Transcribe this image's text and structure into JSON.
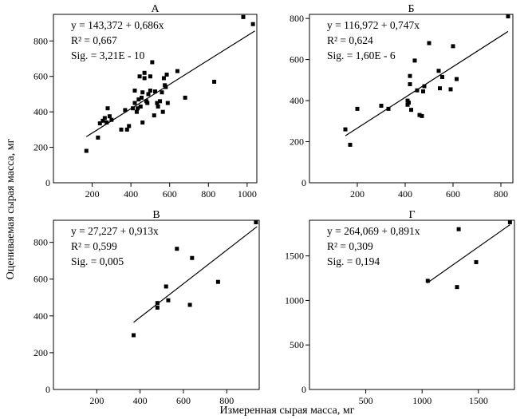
{
  "figure": {
    "xlabel": "Измеренная сырая масса, мг",
    "ylabel": "Оцениваемая сырая масса, мг"
  },
  "chart_data": [
    {
      "type": "scatter",
      "panel": "A",
      "title": "А",
      "equation": "y = 143,372 + 0,686x",
      "r2_label": "R² = 0,667",
      "sig_label": "Sig. = 3,21E - 10",
      "xlim": [
        0,
        1050
      ],
      "ylim": [
        0,
        950
      ],
      "xticks": [
        200,
        400,
        600,
        800,
        1000
      ],
      "yticks": [
        200,
        400,
        600,
        800
      ],
      "fit": {
        "intercept": 143.372,
        "slope": 0.686,
        "x_range": [
          170,
          1040
        ]
      },
      "points": [
        [
          170,
          180
        ],
        [
          230,
          255
        ],
        [
          240,
          335
        ],
        [
          255,
          350
        ],
        [
          265,
          365
        ],
        [
          275,
          340
        ],
        [
          280,
          420
        ],
        [
          290,
          375
        ],
        [
          300,
          355
        ],
        [
          350,
          300
        ],
        [
          370,
          410
        ],
        [
          380,
          300
        ],
        [
          390,
          320
        ],
        [
          410,
          420
        ],
        [
          420,
          450
        ],
        [
          420,
          520
        ],
        [
          430,
          400
        ],
        [
          435,
          420
        ],
        [
          440,
          470
        ],
        [
          445,
          600
        ],
        [
          450,
          430
        ],
        [
          455,
          480
        ],
        [
          460,
          510
        ],
        [
          460,
          340
        ],
        [
          470,
          620
        ],
        [
          470,
          590
        ],
        [
          480,
          460
        ],
        [
          485,
          450
        ],
        [
          490,
          500
        ],
        [
          500,
          600
        ],
        [
          500,
          520
        ],
        [
          510,
          680
        ],
        [
          520,
          380
        ],
        [
          525,
          515
        ],
        [
          535,
          450
        ],
        [
          540,
          430
        ],
        [
          550,
          460
        ],
        [
          560,
          510
        ],
        [
          565,
          400
        ],
        [
          570,
          590
        ],
        [
          575,
          550
        ],
        [
          580,
          540
        ],
        [
          585,
          610
        ],
        [
          590,
          450
        ],
        [
          640,
          630
        ],
        [
          680,
          480
        ],
        [
          830,
          570
        ],
        [
          980,
          935
        ],
        [
          1030,
          895
        ]
      ]
    },
    {
      "type": "scatter",
      "panel": "B",
      "title": "Б",
      "equation": "y = 116,972 + 0,747x",
      "r2_label": "R² = 0,624",
      "sig_label": "Sig. = 1,60E - 6",
      "xlim": [
        0,
        850
      ],
      "ylim": [
        0,
        820
      ],
      "xticks": [
        200,
        400,
        600,
        800
      ],
      "yticks": [
        200,
        400,
        600,
        800
      ],
      "fit": {
        "intercept": 116.972,
        "slope": 0.747,
        "x_range": [
          150,
          830
        ]
      },
      "points": [
        [
          150,
          260
        ],
        [
          170,
          185
        ],
        [
          200,
          360
        ],
        [
          300,
          375
        ],
        [
          330,
          360
        ],
        [
          410,
          380
        ],
        [
          410,
          400
        ],
        [
          415,
          390
        ],
        [
          420,
          480
        ],
        [
          420,
          520
        ],
        [
          425,
          355
        ],
        [
          440,
          595
        ],
        [
          450,
          450
        ],
        [
          460,
          330
        ],
        [
          470,
          325
        ],
        [
          475,
          445
        ],
        [
          480,
          470
        ],
        [
          500,
          680
        ],
        [
          540,
          545
        ],
        [
          545,
          460
        ],
        [
          555,
          515
        ],
        [
          590,
          455
        ],
        [
          600,
          665
        ],
        [
          615,
          505
        ],
        [
          830,
          820
        ]
      ]
    },
    {
      "type": "scatter",
      "panel": "C",
      "title": "В",
      "equation": "y = 27,227 + 0,913x",
      "r2_label": "R² = 0,599",
      "sig_label": "Sig. = 0,005",
      "xlim": [
        0,
        950
      ],
      "ylim": [
        0,
        920
      ],
      "xticks": [
        200,
        400,
        600,
        800
      ],
      "yticks": [
        200,
        400,
        600,
        800
      ],
      "fit": {
        "intercept": 27.227,
        "slope": 0.913,
        "x_range": [
          370,
          940
        ]
      },
      "points": [
        [
          370,
          295
        ],
        [
          480,
          470
        ],
        [
          480,
          445
        ],
        [
          520,
          560
        ],
        [
          530,
          485
        ],
        [
          570,
          765
        ],
        [
          630,
          460
        ],
        [
          640,
          715
        ],
        [
          760,
          585
        ],
        [
          935,
          915
        ]
      ]
    },
    {
      "type": "scatter",
      "panel": "D",
      "title": "Г",
      "equation": "y = 264,069 + 0,891x",
      "r2_label": "R² = 0,309",
      "sig_label": "Sig. = 0,194",
      "xlim": [
        0,
        1820
      ],
      "ylim": [
        0,
        1900
      ],
      "xticks": [
        500,
        1000,
        1500
      ],
      "yticks": [
        500,
        1000,
        1500
      ],
      "fit": {
        "intercept": 264.069,
        "slope": 0.891,
        "x_range": [
          1045,
          1780
        ]
      },
      "points": [
        [
          1050,
          1220
        ],
        [
          1310,
          1150
        ],
        [
          1325,
          1800
        ],
        [
          1480,
          1430
        ],
        [
          1780,
          1880
        ]
      ]
    }
  ]
}
